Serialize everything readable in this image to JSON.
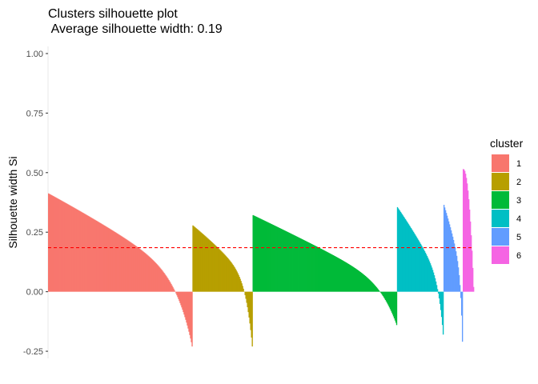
{
  "chart_data": {
    "type": "bar",
    "title": "Clusters silhouette plot",
    "subtitle": " Average silhouette width: 0.19",
    "xlabel": "",
    "ylabel": "Silhouette width Si",
    "ylim": [
      -0.28,
      1.03
    ],
    "yticks": [
      "1.00",
      "0.75",
      "0.50",
      "0.25",
      "0.00",
      "-0.25"
    ],
    "ytick_values": [
      1.0,
      0.75,
      0.5,
      0.25,
      0.0,
      -0.25
    ],
    "grid": false,
    "average_line": {
      "value": 0.185,
      "color": "#ff0000",
      "style": "dashed"
    },
    "legend": {
      "title": "cluster",
      "position": "right"
    },
    "series": [
      {
        "name": "1",
        "color": "#F8766D",
        "count": 180,
        "max": 0.43,
        "min": -0.23,
        "shape": 0.8
      },
      {
        "name": "2",
        "color": "#B79F00",
        "count": 75,
        "max": 0.29,
        "min": -0.23,
        "shape": 0.75
      },
      {
        "name": "3",
        "color": "#00BA38",
        "count": 180,
        "max": 0.335,
        "min": -0.14,
        "shape": 0.9
      },
      {
        "name": "4",
        "color": "#00BFC4",
        "count": 58,
        "max": 0.37,
        "min": -0.18,
        "shape": 0.8
      },
      {
        "name": "5",
        "color": "#619CFF",
        "count": 24,
        "max": 0.38,
        "min": -0.21,
        "shape": 0.7
      },
      {
        "name": "6",
        "color": "#F564E3",
        "count": 14,
        "max": 0.515,
        "min": 0.0,
        "shape": 0.7
      }
    ]
  }
}
